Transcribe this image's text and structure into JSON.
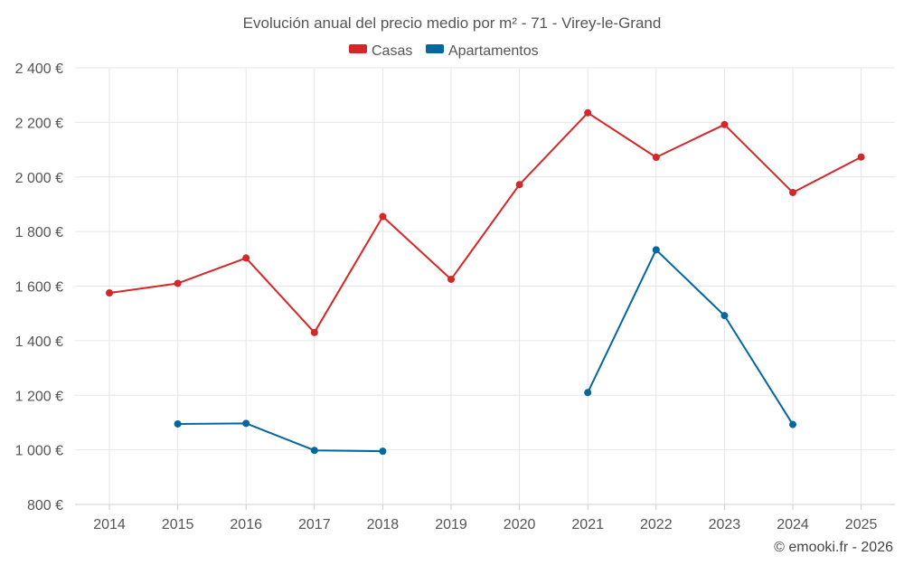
{
  "chart_data": {
    "type": "line",
    "title": "Evolución anual del precio medio por m² - 71 - Virey-le-Grand",
    "x": [
      2014,
      2015,
      2016,
      2017,
      2018,
      2019,
      2020,
      2021,
      2022,
      2023,
      2024,
      2025
    ],
    "x_tick_labels": [
      "2014",
      "2015",
      "2016",
      "2017",
      "2018",
      "2019",
      "2020",
      "2021",
      "2022",
      "2023",
      "2024",
      "2025"
    ],
    "ylim": [
      800,
      2400
    ],
    "y_ticks": [
      800,
      1000,
      1200,
      1400,
      1600,
      1800,
      2000,
      2200,
      2400
    ],
    "y_tick_labels": [
      "800 €",
      "1 000 €",
      "1 200 €",
      "1 400 €",
      "1 600 €",
      "1 800 €",
      "2 000 €",
      "2 200 €",
      "2 400 €"
    ],
    "grid": true,
    "legend_position": "top-center",
    "series": [
      {
        "name": "Casas",
        "color": "#d62728",
        "values": [
          1575,
          1610,
          1703,
          1430,
          1855,
          1625,
          1972,
          2235,
          2072,
          2192,
          1943,
          2073
        ]
      },
      {
        "name": "Apartamentos",
        "color": "#05679f",
        "values": [
          null,
          1095,
          1097,
          998,
          995,
          null,
          null,
          1210,
          1733,
          1492,
          1093,
          null
        ]
      }
    ],
    "credit": "© emooki.fr - 2026"
  }
}
